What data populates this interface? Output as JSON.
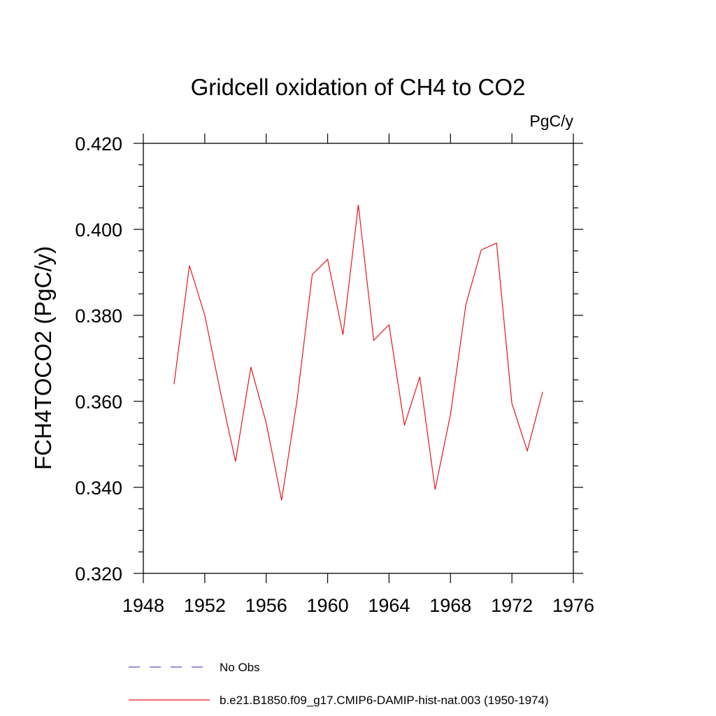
{
  "chart_data": {
    "type": "line",
    "title": "Gridcell oxidation of CH4 to CO2",
    "units_label": "PgC/y",
    "ylabel": "FCH4TOCO2  (PgC/y)",
    "xlabel": "",
    "xlim": [
      1948,
      1976
    ],
    "ylim": [
      0.32,
      0.42
    ],
    "x_ticks": [
      1948,
      1952,
      1956,
      1960,
      1964,
      1968,
      1972,
      1976
    ],
    "x_tick_labels": [
      "1948",
      "1952",
      "1956",
      "1960",
      "1964",
      "1968",
      "1972",
      "1976"
    ],
    "y_ticks": [
      0.32,
      0.34,
      0.36,
      0.38,
      0.4,
      0.42
    ],
    "y_tick_labels": [
      "0.320",
      "0.340",
      "0.360",
      "0.380",
      "0.400",
      "0.420"
    ],
    "grid": false,
    "legend_position": "bottom",
    "colors": {
      "obs": "#5a50c8",
      "model": "#e8141e"
    },
    "series": [
      {
        "name": "No Obs",
        "style": "dashed",
        "x": [],
        "values": []
      },
      {
        "name": "b.e21.B1850.f09_g17.CMIP6-DAMIP-hist-nat.003 (1950-1974)",
        "style": "solid",
        "x": [
          1950,
          1951,
          1952,
          1953,
          1954,
          1955,
          1956,
          1957,
          1958,
          1959,
          1960,
          1961,
          1962,
          1963,
          1964,
          1965,
          1966,
          1967,
          1968,
          1969,
          1970,
          1971,
          1972,
          1973,
          1974
        ],
        "values": [
          0.364,
          0.3916,
          0.38,
          0.3625,
          0.346,
          0.368,
          0.355,
          0.337,
          0.36,
          0.3895,
          0.393,
          0.3755,
          0.4057,
          0.3742,
          0.3778,
          0.3544,
          0.3657,
          0.3395,
          0.357,
          0.3825,
          0.3952,
          0.3968,
          0.3595,
          0.3485,
          0.3622
        ]
      }
    ]
  }
}
